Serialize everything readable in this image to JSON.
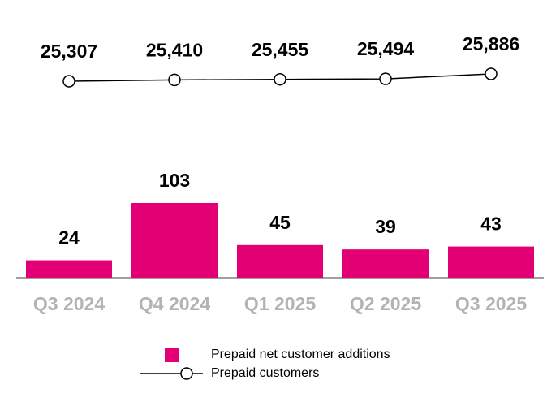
{
  "chart_data": {
    "type": "bar",
    "categories": [
      "Q3 2024",
      "Q4 2024",
      "Q1 2025",
      "Q2 2025",
      "Q3 2025"
    ],
    "series": [
      {
        "name": "Prepaid net customer additions",
        "type": "bar",
        "color": "#e20074",
        "values": [
          24,
          103,
          45,
          39,
          43
        ]
      },
      {
        "name": "Prepaid customers",
        "type": "line",
        "axis": "y2",
        "color": "#000000",
        "values": [
          25307,
          25410,
          25455,
          25494,
          25886
        ],
        "value_labels": [
          "25,307",
          "25,410",
          "25,455",
          "25,494",
          "25,886"
        ]
      }
    ]
  }
}
